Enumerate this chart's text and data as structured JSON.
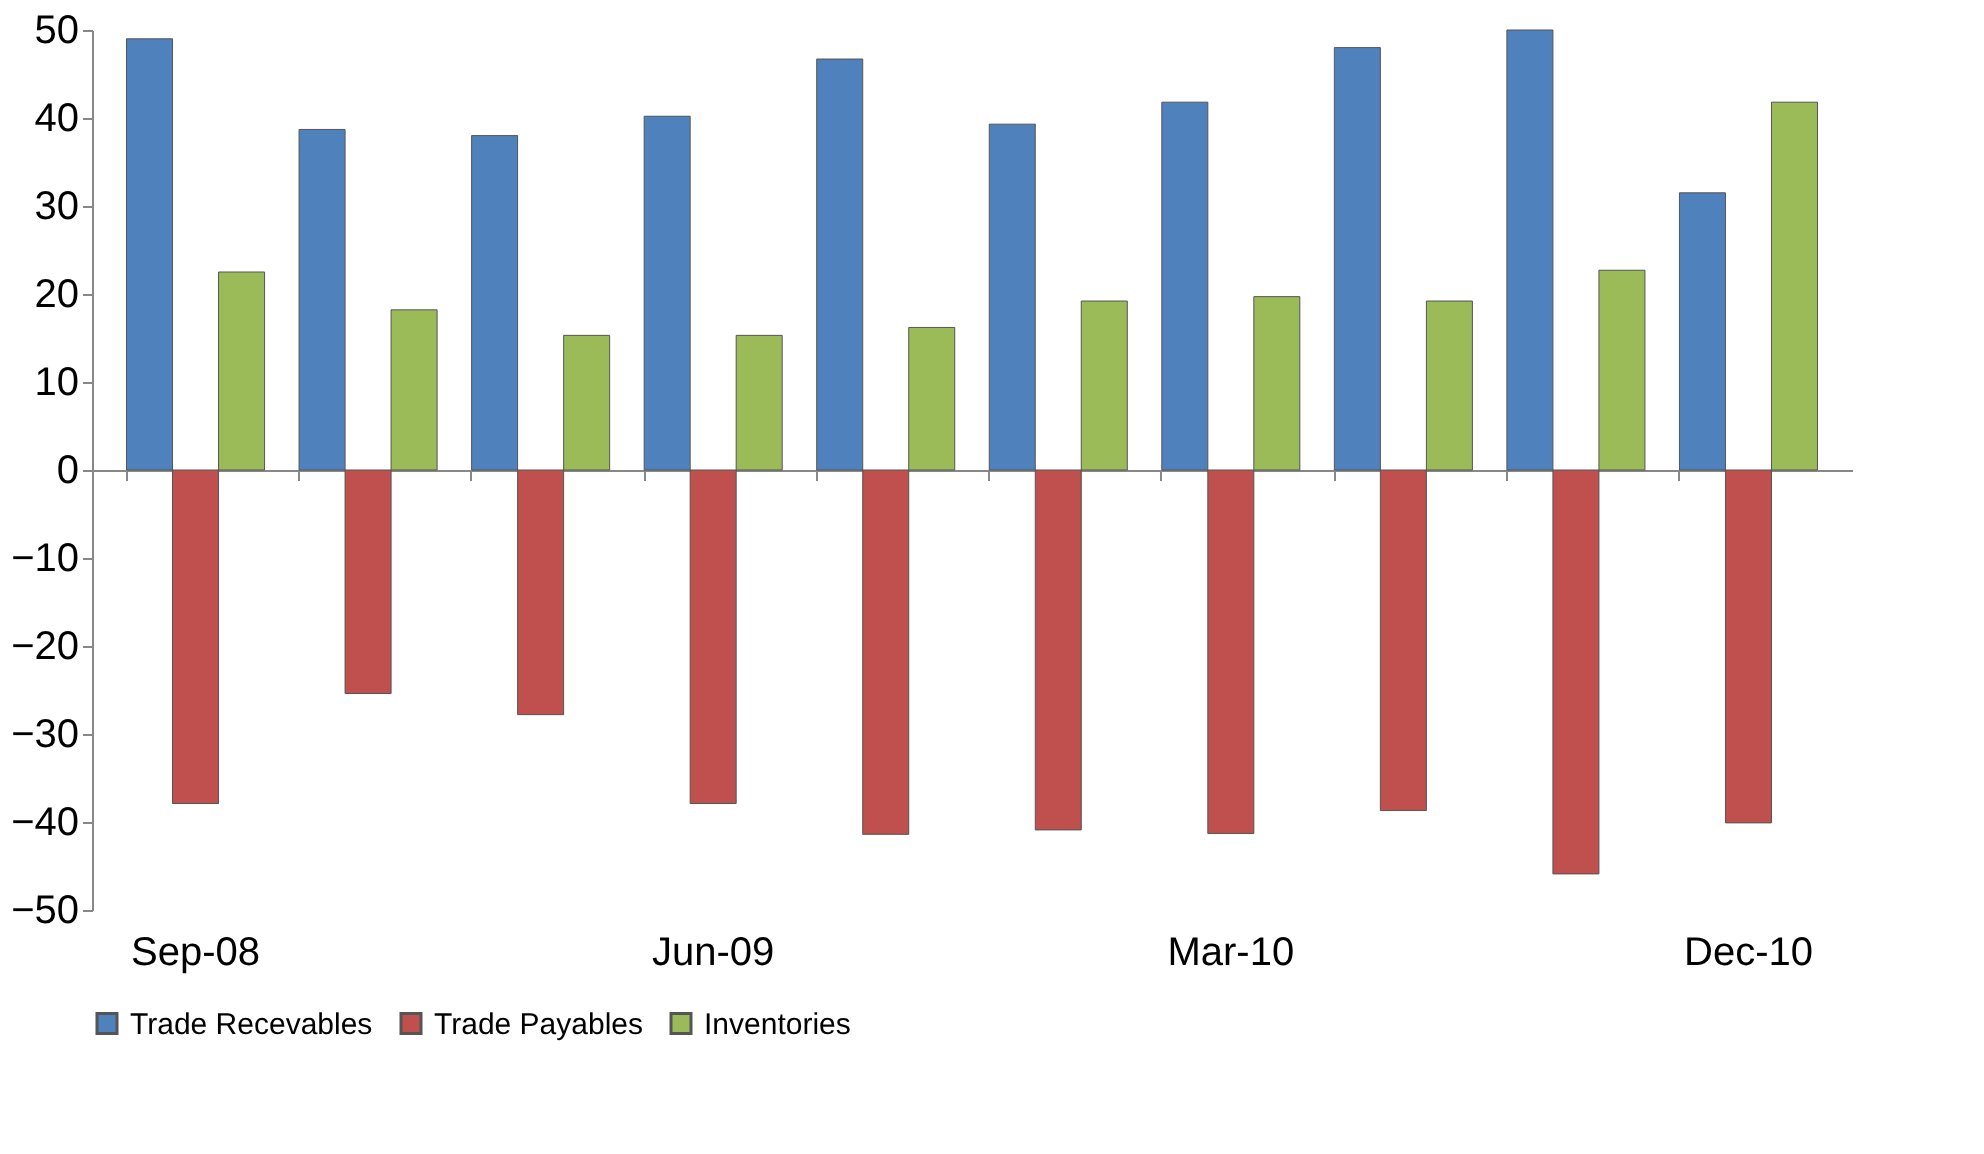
{
  "chart_data": {
    "type": "bar",
    "categories": [
      "Sep-08",
      null,
      null,
      "Jun-09",
      null,
      null,
      "Mar-10",
      null,
      null,
      "Dec-10"
    ],
    "series": [
      {
        "name": "Trade Recevables",
        "color": "#4f81bd",
        "values": [
          49,
          38.7,
          38,
          40.2,
          46.7,
          39.3,
          41.8,
          48,
          50,
          31.5
        ]
      },
      {
        "name": "Trade Payables",
        "color": "#c0504d",
        "values": [
          -37.9,
          -25.4,
          -27.8,
          -37.9,
          -41.4,
          -40.9,
          -41.3,
          -38.7,
          -45.9,
          -40.1
        ]
      },
      {
        "name": "Inventories",
        "color": "#9bbb59",
        "values": [
          22.5,
          18.2,
          15.3,
          15.3,
          16.2,
          19.2,
          19.7,
          19.2,
          22.7,
          41.8
        ]
      }
    ],
    "ylim": [
      -50,
      50
    ],
    "yticks": [
      -50,
      -40,
      -30,
      -20,
      -10,
      0,
      10,
      20,
      30,
      40,
      50
    ],
    "legend": "bottom"
  }
}
